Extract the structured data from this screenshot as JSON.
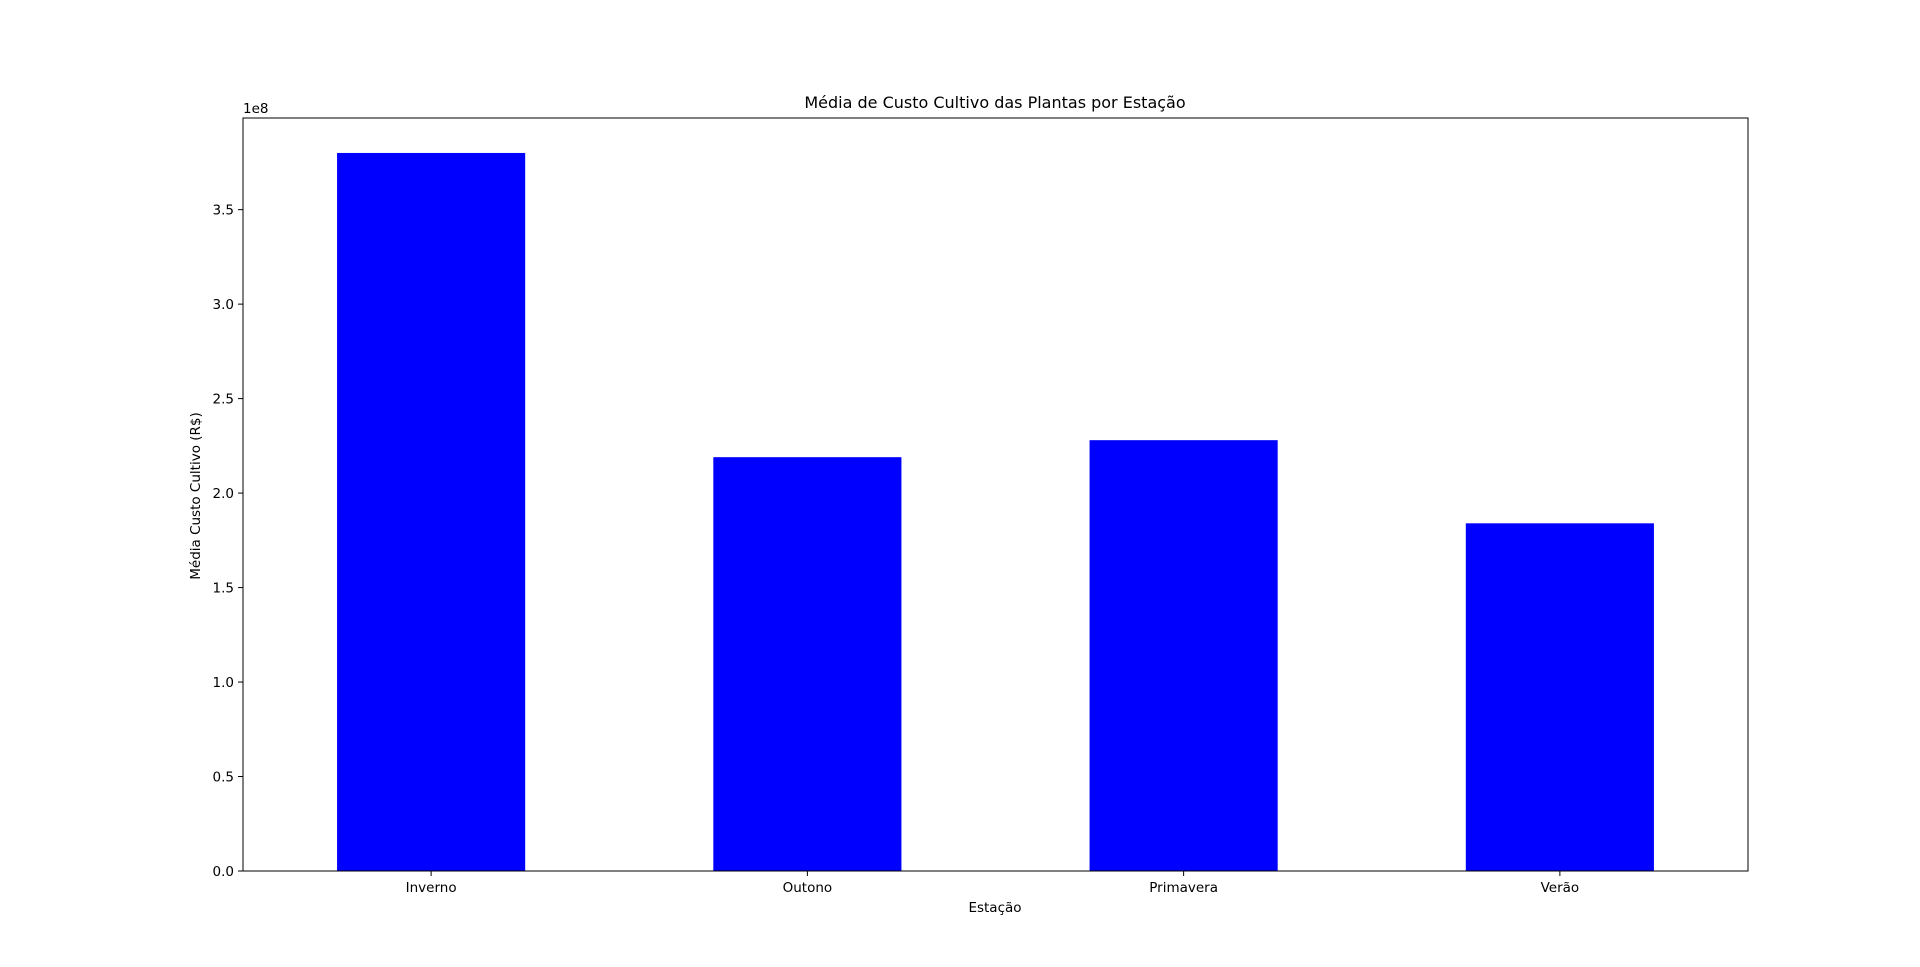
{
  "chart_data": {
    "type": "bar",
    "title": "Média de Custo Cultivo das Plantas por Estação",
    "xlabel": "Estação",
    "ylabel": "Média Custo Cultivo (R$)",
    "categories": [
      "Inverno",
      "Outono",
      "Primavera",
      "Verão"
    ],
    "values": [
      380000000,
      219000000,
      228000000,
      184000000
    ],
    "ylim": [
      0,
      400000000
    ],
    "y_ticks": [
      0,
      50000000,
      100000000,
      150000000,
      200000000,
      250000000,
      300000000,
      350000000
    ],
    "y_tick_labels": [
      "0.0",
      "0.5",
      "1.0",
      "1.5",
      "2.0",
      "2.5",
      "3.0",
      "3.5"
    ],
    "y_offset_label": "1e8",
    "bar_color": "#0000ff",
    "grid": false,
    "legend": false
  }
}
